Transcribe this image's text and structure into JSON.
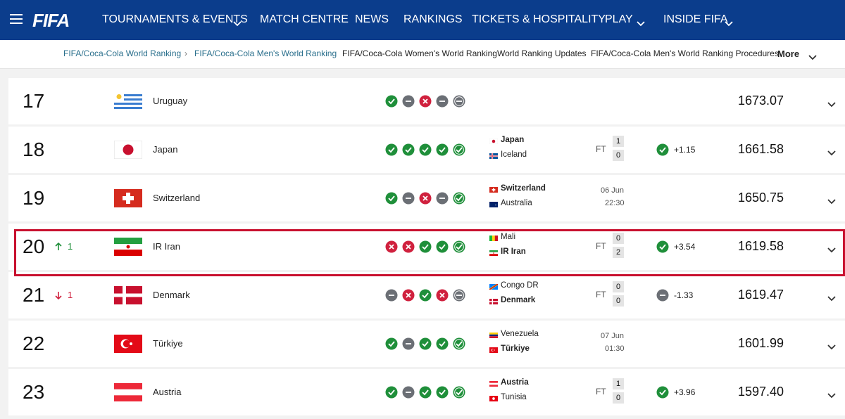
{
  "nav": {
    "logo": "FIFA",
    "items": [
      "TOURNAMENTS & EVENTS",
      "MATCH CENTRE",
      "NEWS",
      "RANKINGS",
      "TICKETS & HOSPITALITY",
      "PLAY",
      "INSIDE FIFA"
    ]
  },
  "subnav": {
    "items": [
      "FIFA/Coca-Cola World Ranking",
      "FIFA/Coca-Cola Men's World Ranking",
      "FIFA/Coca-Cola Women's World Ranking",
      "World Ranking Updates",
      "FIFA/Coca-Cola Men's World Ranking Procedures"
    ],
    "more": "More"
  },
  "rows": [
    {
      "rank": "17",
      "team": "Uruguay",
      "form": [
        "W",
        "D",
        "L",
        "D",
        "D"
      ],
      "points": "1673.07"
    },
    {
      "rank": "18",
      "team": "Japan",
      "form": [
        "W",
        "W",
        "W",
        "W",
        "W"
      ],
      "match": {
        "home": "Japan",
        "away": "Iceland",
        "status": "FT",
        "home_score": 1,
        "away_score": 0,
        "result": "W",
        "points_change": "+1.15"
      },
      "points": "1661.58"
    },
    {
      "rank": "19",
      "team": "Switzerland",
      "form": [
        "W",
        "D",
        "L",
        "D",
        "W"
      ],
      "match": {
        "home": "Switzerland",
        "away": "Australia",
        "date": "06 Jun",
        "time": "22:30"
      },
      "points": "1650.75"
    },
    {
      "rank": "20",
      "movement": {
        "direction": "up",
        "value": "1"
      },
      "team": "IR Iran",
      "form": [
        "L",
        "L",
        "W",
        "W",
        "W"
      ],
      "match": {
        "home": "Mali",
        "away": "IR Iran",
        "status": "FT",
        "home_score": 0,
        "away_score": 2,
        "result": "W",
        "points_change": "+3.54"
      },
      "points": "1619.58",
      "highlighted": true
    },
    {
      "rank": "21",
      "movement": {
        "direction": "down",
        "value": "1"
      },
      "team": "Denmark",
      "form": [
        "D",
        "L",
        "W",
        "L",
        "D"
      ],
      "match": {
        "home": "Congo DR",
        "away": "Denmark",
        "status": "FT",
        "home_score": 0,
        "away_score": 0,
        "result": "D",
        "points_change": "-1.33"
      },
      "points": "1619.47"
    },
    {
      "rank": "22",
      "team": "Türkiye",
      "form": [
        "W",
        "D",
        "W",
        "W",
        "W"
      ],
      "match": {
        "home": "Venezuela",
        "away": "Türkiye",
        "date": "07 Jun",
        "time": "01:30"
      },
      "points": "1601.99"
    },
    {
      "rank": "23",
      "team": "Austria",
      "form": [
        "W",
        "D",
        "W",
        "W",
        "W"
      ],
      "match": {
        "home": "Austria",
        "away": "Tunisia",
        "status": "FT",
        "home_score": 1,
        "away_score": 0,
        "result": "W",
        "points_change": "+3.96"
      },
      "points": "1597.40"
    }
  ]
}
